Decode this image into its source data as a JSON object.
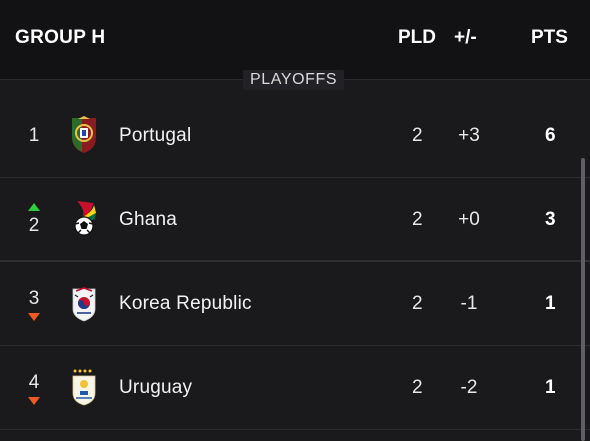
{
  "header": {
    "group": "GROUP H",
    "pld": "PLD",
    "gd": "+/-",
    "pts": "PTS"
  },
  "playoffs_label": "PLAYOFFS",
  "rows": [
    {
      "pos": "1",
      "team": "Portugal",
      "pld": "2",
      "gd": "+3",
      "pts": "6",
      "trend": "none",
      "flag": "portugal-flag-icon"
    },
    {
      "pos": "2",
      "team": "Ghana",
      "pld": "2",
      "gd": "+0",
      "pts": "3",
      "trend": "up",
      "flag": "ghana-flag-icon"
    },
    {
      "pos": "3",
      "team": "Korea Republic",
      "pld": "2",
      "gd": "-1",
      "pts": "1",
      "trend": "down",
      "flag": "korea-flag-icon"
    },
    {
      "pos": "4",
      "team": "Uruguay",
      "pld": "2",
      "gd": "-2",
      "pts": "1",
      "trend": "down",
      "flag": "uruguay-flag-icon"
    }
  ],
  "colors": {
    "trend_up": "#2ecc40",
    "trend_down": "#f05a22",
    "background": "#1a1a1d"
  }
}
